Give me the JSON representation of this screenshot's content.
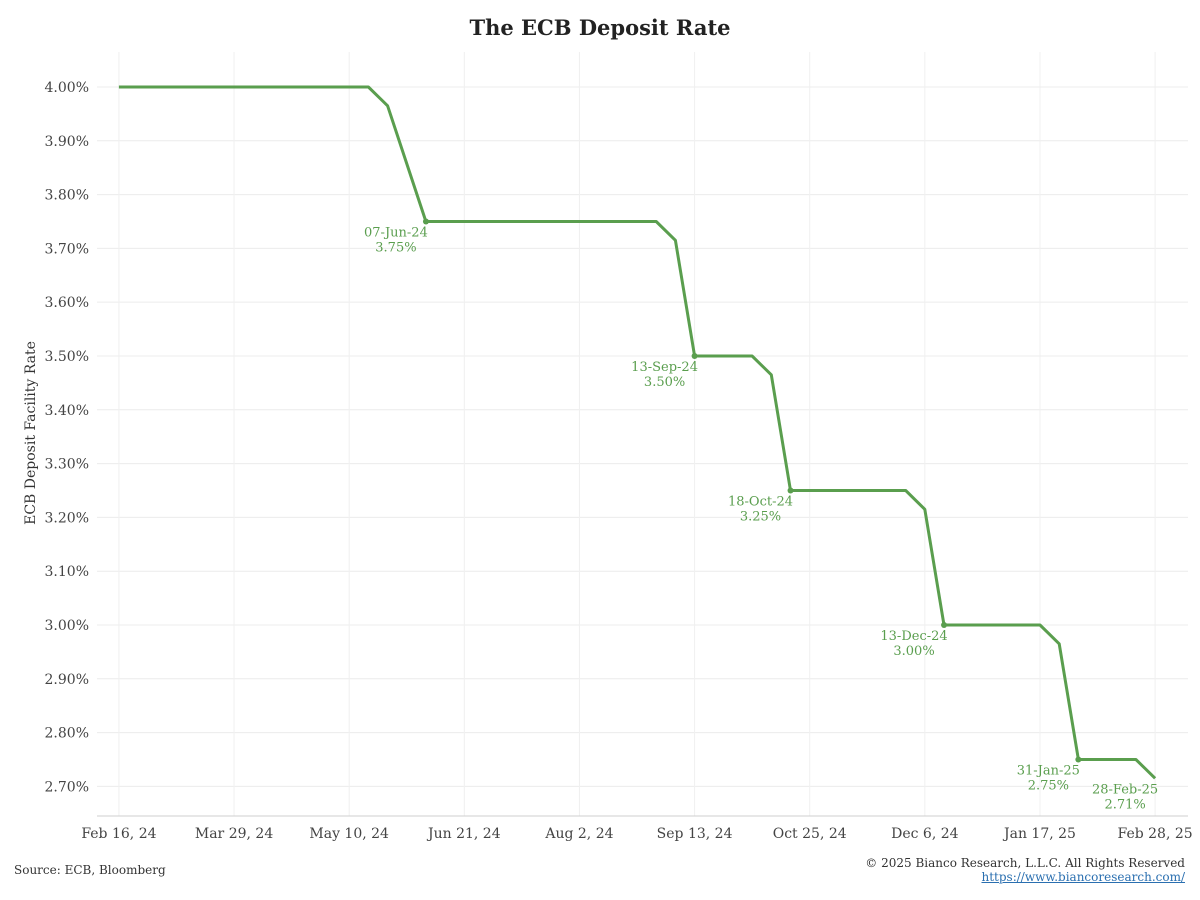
{
  "chart_data": {
    "type": "line",
    "title": "The ECB Deposit Rate",
    "ylabel": "ECB Deposit Facility Rate",
    "xlabel": "",
    "x_range": [
      "2024-02-08",
      "2025-03-12"
    ],
    "ylim": [
      2.645,
      4.065
    ],
    "y_ticks": [
      2.7,
      2.8,
      2.9,
      3.0,
      3.1,
      3.2,
      3.3,
      3.4,
      3.5,
      3.6,
      3.7,
      3.8,
      3.9,
      4.0
    ],
    "y_tick_labels": [
      "2.70%",
      "2.80%",
      "2.90%",
      "3.00%",
      "3.10%",
      "3.20%",
      "3.30%",
      "3.40%",
      "3.50%",
      "3.60%",
      "3.70%",
      "3.80%",
      "3.90%",
      "4.00%"
    ],
    "x_ticks": [
      "2024-02-16",
      "2024-03-29",
      "2024-05-10",
      "2024-06-21",
      "2024-08-02",
      "2024-09-13",
      "2024-10-25",
      "2024-12-06",
      "2025-01-17",
      "2025-02-28"
    ],
    "x_tick_labels": [
      "Feb 16, 24",
      "Mar 29, 24",
      "May 10, 24",
      "Jun 21, 24",
      "Aug 2, 24",
      "Sep 13, 24",
      "Oct 25, 24",
      "Dec 6, 24",
      "Jan 17, 25",
      "Feb 28, 25"
    ],
    "grid": true,
    "series": [
      {
        "color": "#5a9e4e",
        "points": [
          [
            "2024-02-16",
            4.0
          ],
          [
            "2024-05-17",
            4.0
          ],
          [
            "2024-05-24",
            3.965
          ],
          [
            "2024-06-07",
            3.75
          ],
          [
            "2024-08-30",
            3.75
          ],
          [
            "2024-09-06",
            3.715
          ],
          [
            "2024-09-13",
            3.5
          ],
          [
            "2024-10-04",
            3.5
          ],
          [
            "2024-10-11",
            3.465
          ],
          [
            "2024-10-18",
            3.25
          ],
          [
            "2024-11-29",
            3.25
          ],
          [
            "2024-12-06",
            3.215
          ],
          [
            "2024-12-13",
            3.0
          ],
          [
            "2025-01-17",
            3.0
          ],
          [
            "2025-01-24",
            2.965
          ],
          [
            "2025-01-31",
            2.75
          ],
          [
            "2025-02-21",
            2.75
          ],
          [
            "2025-02-28",
            2.715
          ]
        ]
      }
    ],
    "annotations": [
      {
        "x": "2024-06-07",
        "y": 3.75,
        "date_label": "07-Jun-24",
        "value_label": "3.75%"
      },
      {
        "x": "2024-09-13",
        "y": 3.5,
        "date_label": "13-Sep-24",
        "value_label": "3.50%"
      },
      {
        "x": "2024-10-18",
        "y": 3.25,
        "date_label": "18-Oct-24",
        "value_label": "3.25%"
      },
      {
        "x": "2024-12-13",
        "y": 3.0,
        "date_label": "13-Dec-24",
        "value_label": "3.00%"
      },
      {
        "x": "2025-01-31",
        "y": 2.75,
        "date_label": "31-Jan-25",
        "value_label": "2.75%"
      },
      {
        "x": "2025-02-28",
        "y": 2.715,
        "date_label": "28-Feb-25",
        "value_label": "2.71%",
        "no_marker": true
      }
    ]
  },
  "footer": {
    "source": "Source: ECB, Bloomberg",
    "copyright": "© 2025 Bianco Research, L.L.C. All Rights Reserved",
    "website": "https://www.biancoresearch.com/"
  }
}
